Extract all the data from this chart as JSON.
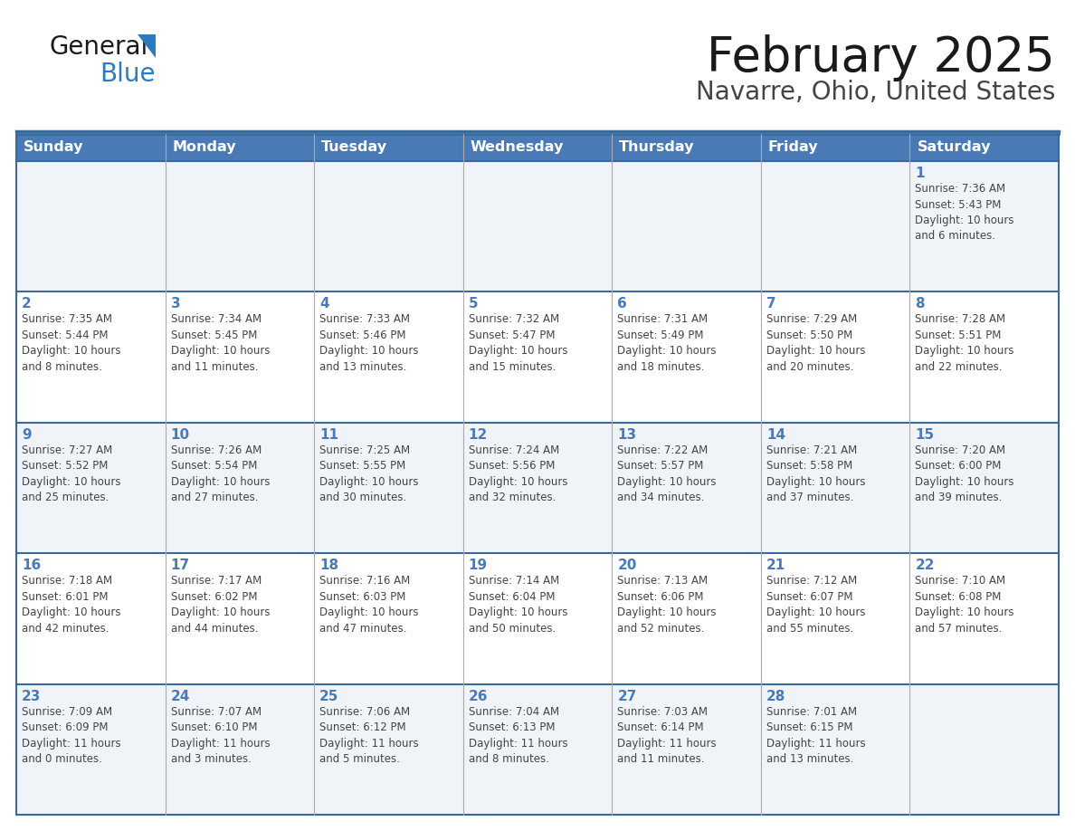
{
  "title": "February 2025",
  "subtitle": "Navarre, Ohio, United States",
  "header_bg_color": "#4a7ab5",
  "header_text_color": "#ffffff",
  "row_bg_odd": "#f0f4f8",
  "row_bg_even": "#ffffff",
  "day_num_color": "#4a7ab5",
  "text_color": "#444444",
  "border_color": "#3a6a9a",
  "divider_color": "#aaaaaa",
  "days_of_week": [
    "Sunday",
    "Monday",
    "Tuesday",
    "Wednesday",
    "Thursday",
    "Friday",
    "Saturday"
  ],
  "weeks": [
    [
      {
        "day": null,
        "info": null
      },
      {
        "day": null,
        "info": null
      },
      {
        "day": null,
        "info": null
      },
      {
        "day": null,
        "info": null
      },
      {
        "day": null,
        "info": null
      },
      {
        "day": null,
        "info": null
      },
      {
        "day": "1",
        "info": "Sunrise: 7:36 AM\nSunset: 5:43 PM\nDaylight: 10 hours\nand 6 minutes."
      }
    ],
    [
      {
        "day": "2",
        "info": "Sunrise: 7:35 AM\nSunset: 5:44 PM\nDaylight: 10 hours\nand 8 minutes."
      },
      {
        "day": "3",
        "info": "Sunrise: 7:34 AM\nSunset: 5:45 PM\nDaylight: 10 hours\nand 11 minutes."
      },
      {
        "day": "4",
        "info": "Sunrise: 7:33 AM\nSunset: 5:46 PM\nDaylight: 10 hours\nand 13 minutes."
      },
      {
        "day": "5",
        "info": "Sunrise: 7:32 AM\nSunset: 5:47 PM\nDaylight: 10 hours\nand 15 minutes."
      },
      {
        "day": "6",
        "info": "Sunrise: 7:31 AM\nSunset: 5:49 PM\nDaylight: 10 hours\nand 18 minutes."
      },
      {
        "day": "7",
        "info": "Sunrise: 7:29 AM\nSunset: 5:50 PM\nDaylight: 10 hours\nand 20 minutes."
      },
      {
        "day": "8",
        "info": "Sunrise: 7:28 AM\nSunset: 5:51 PM\nDaylight: 10 hours\nand 22 minutes."
      }
    ],
    [
      {
        "day": "9",
        "info": "Sunrise: 7:27 AM\nSunset: 5:52 PM\nDaylight: 10 hours\nand 25 minutes."
      },
      {
        "day": "10",
        "info": "Sunrise: 7:26 AM\nSunset: 5:54 PM\nDaylight: 10 hours\nand 27 minutes."
      },
      {
        "day": "11",
        "info": "Sunrise: 7:25 AM\nSunset: 5:55 PM\nDaylight: 10 hours\nand 30 minutes."
      },
      {
        "day": "12",
        "info": "Sunrise: 7:24 AM\nSunset: 5:56 PM\nDaylight: 10 hours\nand 32 minutes."
      },
      {
        "day": "13",
        "info": "Sunrise: 7:22 AM\nSunset: 5:57 PM\nDaylight: 10 hours\nand 34 minutes."
      },
      {
        "day": "14",
        "info": "Sunrise: 7:21 AM\nSunset: 5:58 PM\nDaylight: 10 hours\nand 37 minutes."
      },
      {
        "day": "15",
        "info": "Sunrise: 7:20 AM\nSunset: 6:00 PM\nDaylight: 10 hours\nand 39 minutes."
      }
    ],
    [
      {
        "day": "16",
        "info": "Sunrise: 7:18 AM\nSunset: 6:01 PM\nDaylight: 10 hours\nand 42 minutes."
      },
      {
        "day": "17",
        "info": "Sunrise: 7:17 AM\nSunset: 6:02 PM\nDaylight: 10 hours\nand 44 minutes."
      },
      {
        "day": "18",
        "info": "Sunrise: 7:16 AM\nSunset: 6:03 PM\nDaylight: 10 hours\nand 47 minutes."
      },
      {
        "day": "19",
        "info": "Sunrise: 7:14 AM\nSunset: 6:04 PM\nDaylight: 10 hours\nand 50 minutes."
      },
      {
        "day": "20",
        "info": "Sunrise: 7:13 AM\nSunset: 6:06 PM\nDaylight: 10 hours\nand 52 minutes."
      },
      {
        "day": "21",
        "info": "Sunrise: 7:12 AM\nSunset: 6:07 PM\nDaylight: 10 hours\nand 55 minutes."
      },
      {
        "day": "22",
        "info": "Sunrise: 7:10 AM\nSunset: 6:08 PM\nDaylight: 10 hours\nand 57 minutes."
      }
    ],
    [
      {
        "day": "23",
        "info": "Sunrise: 7:09 AM\nSunset: 6:09 PM\nDaylight: 11 hours\nand 0 minutes."
      },
      {
        "day": "24",
        "info": "Sunrise: 7:07 AM\nSunset: 6:10 PM\nDaylight: 11 hours\nand 3 minutes."
      },
      {
        "day": "25",
        "info": "Sunrise: 7:06 AM\nSunset: 6:12 PM\nDaylight: 11 hours\nand 5 minutes."
      },
      {
        "day": "26",
        "info": "Sunrise: 7:04 AM\nSunset: 6:13 PM\nDaylight: 11 hours\nand 8 minutes."
      },
      {
        "day": "27",
        "info": "Sunrise: 7:03 AM\nSunset: 6:14 PM\nDaylight: 11 hours\nand 11 minutes."
      },
      {
        "day": "28",
        "info": "Sunrise: 7:01 AM\nSunset: 6:15 PM\nDaylight: 11 hours\nand 13 minutes."
      },
      {
        "day": null,
        "info": null
      }
    ]
  ]
}
